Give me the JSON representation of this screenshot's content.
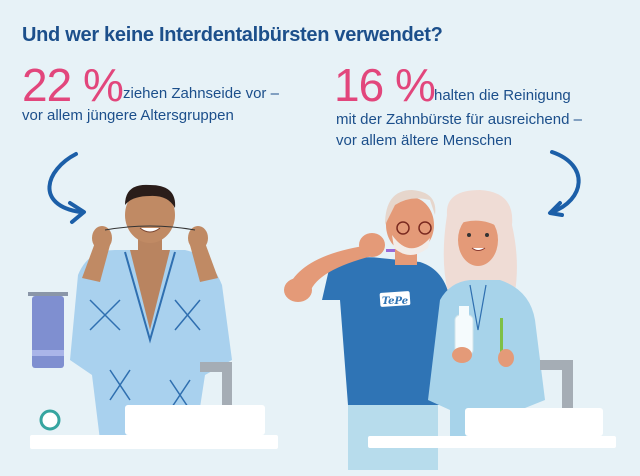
{
  "title": "Und wer keine Interdentalbürsten verwendet?",
  "left_stat": {
    "percent": "22 %",
    "line1": "ziehen Zahnseide vor –",
    "line2": "vor allem jüngere Altersgruppen"
  },
  "right_stat": {
    "percent": "16 %",
    "line1": "halten die Reinigung",
    "line2": "mit der Zahnbürste für ausreichend –",
    "line3": "vor allem ältere Menschen"
  },
  "shirt_logo": "TePe",
  "colors": {
    "background": "#e7f2f7",
    "title": "#1c4f8b",
    "accent_pink": "#e2467c",
    "shirt_blue": "#2f74b5",
    "robe_light": "#a7d3ea"
  }
}
